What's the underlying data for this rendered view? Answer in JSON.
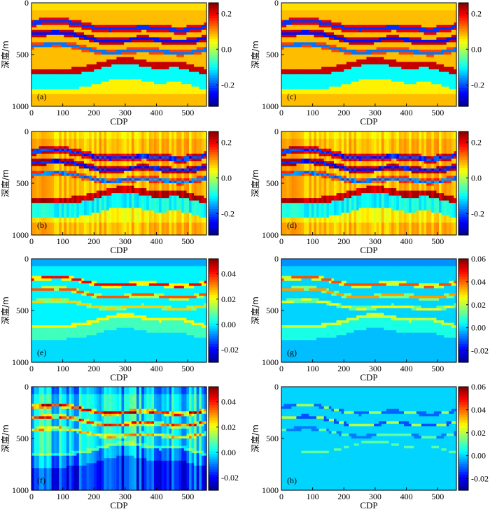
{
  "colors": {
    "jet": [
      "#00008f",
      "#0000ff",
      "#007fff",
      "#00ffff",
      "#7fff7f",
      "#ffff00",
      "#ff7f00",
      "#ff0000",
      "#7f0000"
    ],
    "axis": "#000000"
  },
  "chart_data": [
    {
      "type": "heatmap",
      "label": "(a)",
      "kind": "model",
      "xlabel": "CDP",
      "ylabel": "深度/m",
      "xlim": [
        0,
        560
      ],
      "ylim": [
        1000,
        0
      ],
      "xticks": [
        "0",
        "100",
        "200",
        "300",
        "400",
        "500"
      ],
      "yticks": [
        "0",
        "500",
        "1000"
      ],
      "colorbar": {
        "range": [
          -0.32,
          0.26
        ],
        "ticks": [
          "0.2",
          "0.0",
          "-0.2"
        ],
        "tick_values": [
          0.2,
          0.0,
          -0.2
        ]
      }
    },
    {
      "type": "heatmap",
      "label": "(c)",
      "kind": "model",
      "xlabel": "CDP",
      "ylabel": "深度/m",
      "xlim": [
        0,
        560
      ],
      "ylim": [
        1000,
        0
      ],
      "xticks": [
        "0",
        "100",
        "200",
        "300",
        "400",
        "500"
      ],
      "yticks": [
        "0",
        "500",
        "1000"
      ],
      "colorbar": {
        "range": [
          -0.32,
          0.26
        ],
        "ticks": [
          "0.2",
          "0.0",
          "-0.2"
        ],
        "tick_values": [
          0.2,
          0.0,
          -0.2
        ]
      }
    },
    {
      "type": "heatmap",
      "label": "(b)",
      "kind": "model_noisy",
      "xlabel": "CDP",
      "ylabel": "深度/m",
      "xlim": [
        0,
        560
      ],
      "ylim": [
        1000,
        0
      ],
      "xticks": [
        "0",
        "100",
        "200",
        "300",
        "400",
        "500"
      ],
      "yticks": [
        "0",
        "500",
        "1000"
      ],
      "colorbar": {
        "range": [
          -0.32,
          0.26
        ],
        "ticks": [
          "0.2",
          "0.0",
          "-0.2"
        ],
        "tick_values": [
          0.2,
          0.0,
          -0.2
        ]
      }
    },
    {
      "type": "heatmap",
      "label": "(d)",
      "kind": "model_noisy",
      "xlabel": "CDP",
      "ylabel": "深度/m",
      "xlim": [
        0,
        560
      ],
      "ylim": [
        1000,
        0
      ],
      "xticks": [
        "0",
        "100",
        "200",
        "300",
        "400",
        "500"
      ],
      "yticks": [
        "0",
        "500",
        "1000"
      ],
      "colorbar": {
        "range": [
          -0.32,
          0.26
        ],
        "ticks": [
          "0.2",
          "0.0",
          "-0.2"
        ],
        "tick_values": [
          0.2,
          0.0,
          -0.2
        ]
      }
    },
    {
      "type": "heatmap",
      "label": "(e)",
      "kind": "reflect",
      "xlabel": "CDP",
      "ylabel": "深度/m",
      "xlim": [
        0,
        560
      ],
      "ylim": [
        1000,
        0
      ],
      "xticks": [
        "0",
        "100",
        "200",
        "300",
        "400",
        "500"
      ],
      "yticks": [
        "0",
        "500",
        "1000"
      ],
      "colorbar": {
        "range": [
          -0.03,
          0.052
        ],
        "ticks": [
          "0.04",
          "0.02",
          "0.00",
          "-0.02"
        ],
        "tick_values": [
          0.04,
          0.02,
          0.0,
          -0.02
        ]
      }
    },
    {
      "type": "heatmap",
      "label": "(g)",
      "kind": "reflect",
      "xlabel": "CDP",
      "ylabel": "深度/m",
      "xlim": [
        0,
        560
      ],
      "ylim": [
        1000,
        0
      ],
      "xticks": [
        "0",
        "100",
        "200",
        "300",
        "400",
        "500"
      ],
      "yticks": [
        "0",
        "500",
        "1000"
      ],
      "colorbar": {
        "range": [
          -0.03,
          0.06
        ],
        "ticks": [
          "0.06",
          "0.04",
          "0.02",
          "0.00",
          "-0.02"
        ],
        "tick_values": [
          0.06,
          0.04,
          0.02,
          0.0,
          -0.02
        ]
      }
    },
    {
      "type": "heatmap",
      "label": "(f)",
      "kind": "reflect_noisy",
      "xlabel": "CDP",
      "ylabel": "深度/m",
      "xlim": [
        0,
        560
      ],
      "ylim": [
        1000,
        0
      ],
      "xticks": [
        "0",
        "100",
        "200",
        "300",
        "400",
        "500"
      ],
      "yticks": [
        "0",
        "500",
        "1000"
      ],
      "colorbar": {
        "range": [
          -0.03,
          0.052
        ],
        "ticks": [
          "0.04",
          "0.02",
          "0.00",
          "-0.02"
        ],
        "tick_values": [
          0.04,
          0.02,
          0.0,
          -0.02
        ]
      }
    },
    {
      "type": "heatmap",
      "label": "(h)",
      "kind": "difference",
      "xlabel": "CDP",
      "ylabel": "深度/m",
      "xlim": [
        0,
        560
      ],
      "ylim": [
        1000,
        0
      ],
      "xticks": [
        "0",
        "100",
        "200",
        "300",
        "400",
        "500"
      ],
      "yticks": [
        "0",
        "500",
        "1000"
      ],
      "colorbar": {
        "range": [
          -0.03,
          0.06
        ],
        "ticks": [
          "0.06",
          "0.04",
          "0.02",
          "0.00",
          "-0.02"
        ],
        "tick_values": [
          0.06,
          0.04,
          0.02,
          0.0,
          -0.02
        ]
      }
    }
  ]
}
